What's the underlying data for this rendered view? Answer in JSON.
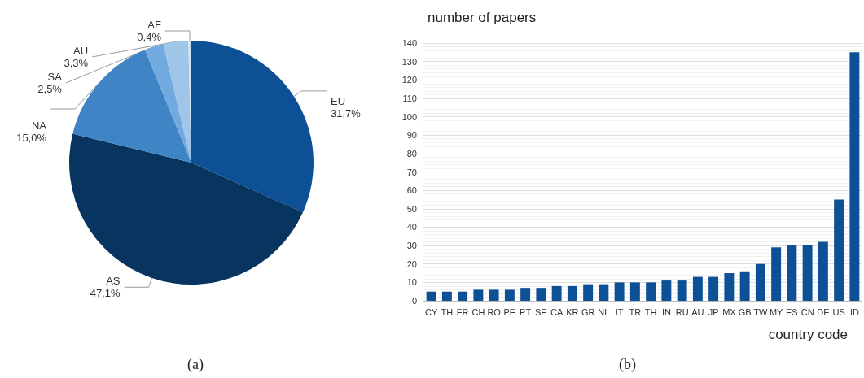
{
  "chart_data": [
    {
      "type": "pie",
      "categories": [
        "EU",
        "AS",
        "NA",
        "SA",
        "AU",
        "AF"
      ],
      "values": [
        31.7,
        47.1,
        15.0,
        2.5,
        3.3,
        0.4
      ],
      "value_labels": [
        "31,7%",
        "47,1%",
        "15,0%",
        "2,5%",
        "3,3%",
        "0,4%"
      ],
      "colors": [
        "#0e5096",
        "#08355f",
        "#3f85c6",
        "#72aae0",
        "#9fc5e8",
        "#cfe2f3"
      ],
      "legend": false,
      "annotations": [
        "(a)"
      ]
    },
    {
      "type": "bar",
      "categories": [
        "CY",
        "TH",
        "FR",
        "CH",
        "RO",
        "PE",
        "PT",
        "SE",
        "CA",
        "KR",
        "GR",
        "NL",
        "IT",
        "TR",
        "TH",
        "IN",
        "RU",
        "AU",
        "JP",
        "MX",
        "GB",
        "TW",
        "MY",
        "ES",
        "CN",
        "DE",
        "US",
        "ID"
      ],
      "values": [
        5,
        5,
        5,
        6,
        6,
        6,
        7,
        7,
        8,
        8,
        9,
        9,
        10,
        10,
        10,
        11,
        11,
        13,
        13,
        15,
        16,
        20,
        29,
        30,
        30,
        32,
        55,
        135
      ],
      "color": "#0e5096",
      "ylim": [
        0,
        140
      ],
      "yticks": [
        0,
        10,
        20,
        30,
        40,
        50,
        60,
        70,
        80,
        90,
        100,
        110,
        120,
        130,
        140
      ],
      "ylabel": "number of papers",
      "xlabel": "country code",
      "grid": "y",
      "legend": false,
      "annotations": [
        "(b)"
      ]
    }
  ]
}
